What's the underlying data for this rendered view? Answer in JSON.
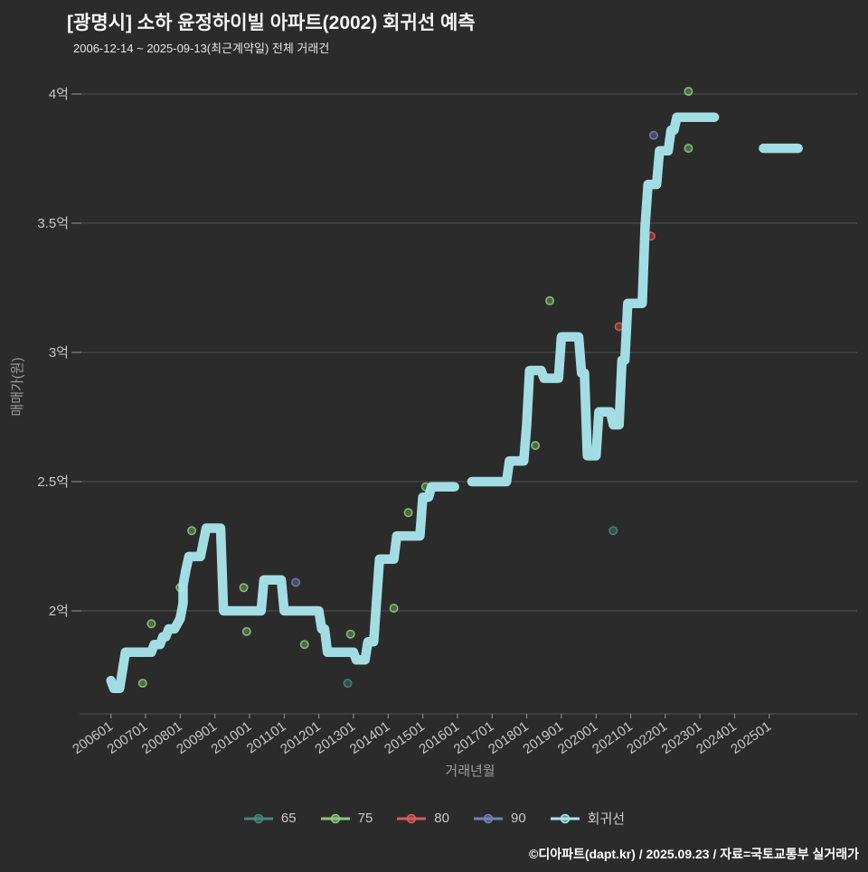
{
  "header": {
    "title": "[광명시] 소하 윤정하이빌 아파트(2002) 회귀선 예측",
    "subtitle": "2006-12-14 ~ 2025-09-13(최근계약일) 전체 거래건"
  },
  "footer": {
    "credit": "©디아파트(dapt.kr) / 2025.09.23 / 자료=국토교통부 실거래가"
  },
  "chart_data": {
    "type": "line",
    "title": "[광명시] 소하 윤정하이빌 아파트(2002) 회귀선 예측",
    "subtitle": "2006-12-14 ~ 2025-09-13(최근계약일) 전체 거래건",
    "xlabel": "거래년월",
    "ylabel": "매매가(원)",
    "x_ticks": [
      "200601",
      "200701",
      "200801",
      "200901",
      "201001",
      "201101",
      "201201",
      "201301",
      "201401",
      "201501",
      "201601",
      "201701",
      "201801",
      "201901",
      "202001",
      "202101",
      "202201",
      "202301",
      "202401",
      "202501"
    ],
    "y_ticks": [
      {
        "label": "2억",
        "value": 2.0
      },
      {
        "label": "2.5억",
        "value": 2.5
      },
      {
        "label": "3억",
        "value": 3.0
      },
      {
        "label": "3.5억",
        "value": 3.5
      },
      {
        "label": "4억",
        "value": 4.0
      }
    ],
    "ylim": [
      1.6,
      4.1
    ],
    "xlim": [
      "200601",
      "202512"
    ],
    "grid": true,
    "legend_position": "bottom",
    "series": [
      {
        "name": "65",
        "color": "#46867f",
        "points": [
          [
            201211,
            1.72
          ],
          [
            202007,
            2.31
          ]
        ]
      },
      {
        "name": "75",
        "color": "#8bc97b",
        "points": [
          [
            200612,
            1.72
          ],
          [
            200703,
            1.95
          ],
          [
            200801,
            2.09
          ],
          [
            200805,
            2.31
          ],
          [
            200911,
            2.09
          ],
          [
            200912,
            1.92
          ],
          [
            201108,
            1.87
          ],
          [
            201212,
            1.91
          ],
          [
            201403,
            2.01
          ],
          [
            201408,
            2.38
          ],
          [
            201502,
            2.48
          ],
          [
            201804,
            2.64
          ],
          [
            201809,
            3.2
          ],
          [
            202209,
            4.01
          ],
          [
            202209,
            3.79
          ]
        ]
      },
      {
        "name": "80",
        "color": "#dd5a58",
        "points": [
          [
            202009,
            3.1
          ],
          [
            202108,
            3.45
          ]
        ]
      },
      {
        "name": "90",
        "color": "#7183b5",
        "points": [
          [
            201105,
            2.11
          ],
          [
            202109,
            3.84
          ]
        ]
      }
    ],
    "regression": {
      "name": "회귀선",
      "color": "#a9e7ee",
      "width": 10.5,
      "segments": [
        [
          [
            200601,
            1.73
          ],
          [
            200602,
            1.7
          ],
          [
            200604,
            1.7
          ],
          [
            200606,
            1.84
          ],
          [
            200703,
            1.84
          ],
          [
            200704,
            1.87
          ],
          [
            200706,
            1.87
          ],
          [
            200707,
            1.9
          ],
          [
            200708,
            1.9
          ],
          [
            200709,
            1.93
          ],
          [
            200711,
            1.93
          ],
          [
            200801,
            1.97
          ],
          [
            200802,
            2.03
          ],
          [
            200802,
            2.1
          ],
          [
            200803,
            2.16
          ],
          [
            200804,
            2.21
          ],
          [
            200808,
            2.21
          ],
          [
            200810,
            2.32
          ],
          [
            200903,
            2.32
          ],
          [
            200904,
            2.0
          ],
          [
            201005,
            2.0
          ],
          [
            201006,
            2.12
          ],
          [
            201012,
            2.12
          ],
          [
            201101,
            2.0
          ],
          [
            201201,
            2.0
          ],
          [
            201202,
            1.93
          ],
          [
            201203,
            1.93
          ],
          [
            201204,
            1.84
          ],
          [
            201301,
            1.84
          ],
          [
            201302,
            1.81
          ],
          [
            201305,
            1.81
          ],
          [
            201306,
            1.88
          ],
          [
            201308,
            1.88
          ],
          [
            201310,
            2.2
          ],
          [
            201403,
            2.2
          ],
          [
            201404,
            2.29
          ],
          [
            201412,
            2.29
          ],
          [
            201501,
            2.44
          ],
          [
            201503,
            2.44
          ],
          [
            201504,
            2.48
          ],
          [
            201512,
            2.48
          ]
        ],
        [
          [
            201606,
            2.5
          ],
          [
            201706,
            2.5
          ],
          [
            201707,
            2.58
          ],
          [
            201712,
            2.58
          ],
          [
            201801,
            2.72
          ],
          [
            201802,
            2.93
          ],
          [
            201806,
            2.93
          ],
          [
            201807,
            2.9
          ],
          [
            201812,
            2.9
          ],
          [
            201901,
            3.06
          ],
          [
            201907,
            3.06
          ],
          [
            201908,
            2.92
          ],
          [
            201909,
            2.92
          ],
          [
            201910,
            2.6
          ],
          [
            202001,
            2.6
          ],
          [
            202002,
            2.77
          ],
          [
            202006,
            2.77
          ],
          [
            202007,
            2.72
          ],
          [
            202009,
            2.72
          ],
          [
            202010,
            2.97
          ],
          [
            202011,
            2.97
          ],
          [
            202012,
            3.19
          ],
          [
            202105,
            3.19
          ],
          [
            202106,
            3.49
          ],
          [
            202107,
            3.65
          ],
          [
            202110,
            3.65
          ],
          [
            202111,
            3.78
          ],
          [
            202202,
            3.78
          ],
          [
            202203,
            3.86
          ],
          [
            202204,
            3.86
          ],
          [
            202205,
            3.91
          ],
          [
            202306,
            3.91
          ]
        ],
        [
          [
            202411,
            3.79
          ],
          [
            202511,
            3.79
          ]
        ]
      ]
    }
  }
}
